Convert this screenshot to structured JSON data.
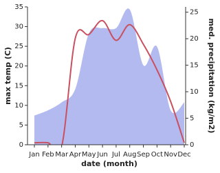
{
  "chart_data": {
    "type": "line",
    "x_label": "date (month)",
    "y_label": "max temp (C)",
    "y2_label": "med. precipitation (kg/m2)",
    "categories": [
      "Jan",
      "Feb",
      "Mar",
      "Apr",
      "May",
      "Jun",
      "Jul",
      "Aug",
      "Sep",
      "Oct",
      "Nov",
      "Dec"
    ],
    "series": [
      {
        "type": "area",
        "axis": "y2",
        "color": "#b3baf0",
        "values": [
          5.5,
          6.5,
          8,
          10.5,
          21,
          22,
          22,
          25.5,
          15,
          18.5,
          6.5,
          8
        ]
      },
      {
        "type": "line",
        "axis": "y",
        "color": "#c8505f",
        "values": [
          0.5,
          0.5,
          -0.5,
          27,
          28,
          31.5,
          26.5,
          30.5,
          25.5,
          19,
          11,
          0.5
        ]
      }
    ],
    "ylim": [
      0,
      35
    ],
    "yticks": [
      0,
      5,
      10,
      15,
      20,
      25,
      30,
      35
    ],
    "y2lim": [
      0,
      26
    ],
    "y2ticks": [
      0,
      5,
      10,
      15,
      20,
      25
    ]
  }
}
